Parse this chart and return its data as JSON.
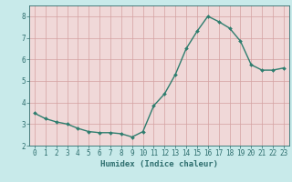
{
  "title": "",
  "xlabel": "Humidex (Indice chaleur)",
  "ylabel": "",
  "x": [
    0,
    1,
    2,
    3,
    4,
    5,
    6,
    7,
    8,
    9,
    10,
    11,
    12,
    13,
    14,
    15,
    16,
    17,
    18,
    19,
    20,
    21,
    22,
    23
  ],
  "y": [
    3.5,
    3.25,
    3.1,
    3.0,
    2.8,
    2.65,
    2.6,
    2.6,
    2.55,
    2.4,
    2.65,
    3.85,
    4.4,
    5.3,
    6.5,
    7.3,
    8.0,
    7.75,
    7.45,
    6.85,
    5.75,
    5.5,
    5.5,
    5.6
  ],
  "line_color": "#2e7d6e",
  "marker": "D",
  "marker_size": 2.0,
  "line_width": 1.0,
  "bg_color": "#c8eaea",
  "grid_color": "#d4a0a0",
  "plot_bg_color": "#f0d8d8",
  "ylim": [
    2.0,
    8.5
  ],
  "xlim": [
    -0.5,
    23.5
  ],
  "yticks": [
    2,
    3,
    4,
    5,
    6,
    7,
    8
  ],
  "xticks": [
    0,
    1,
    2,
    3,
    4,
    5,
    6,
    7,
    8,
    9,
    10,
    11,
    12,
    13,
    14,
    15,
    16,
    17,
    18,
    19,
    20,
    21,
    22,
    23
  ],
  "tick_color": "#2e6e6e",
  "label_fontsize": 6.5,
  "tick_fontsize": 5.5
}
